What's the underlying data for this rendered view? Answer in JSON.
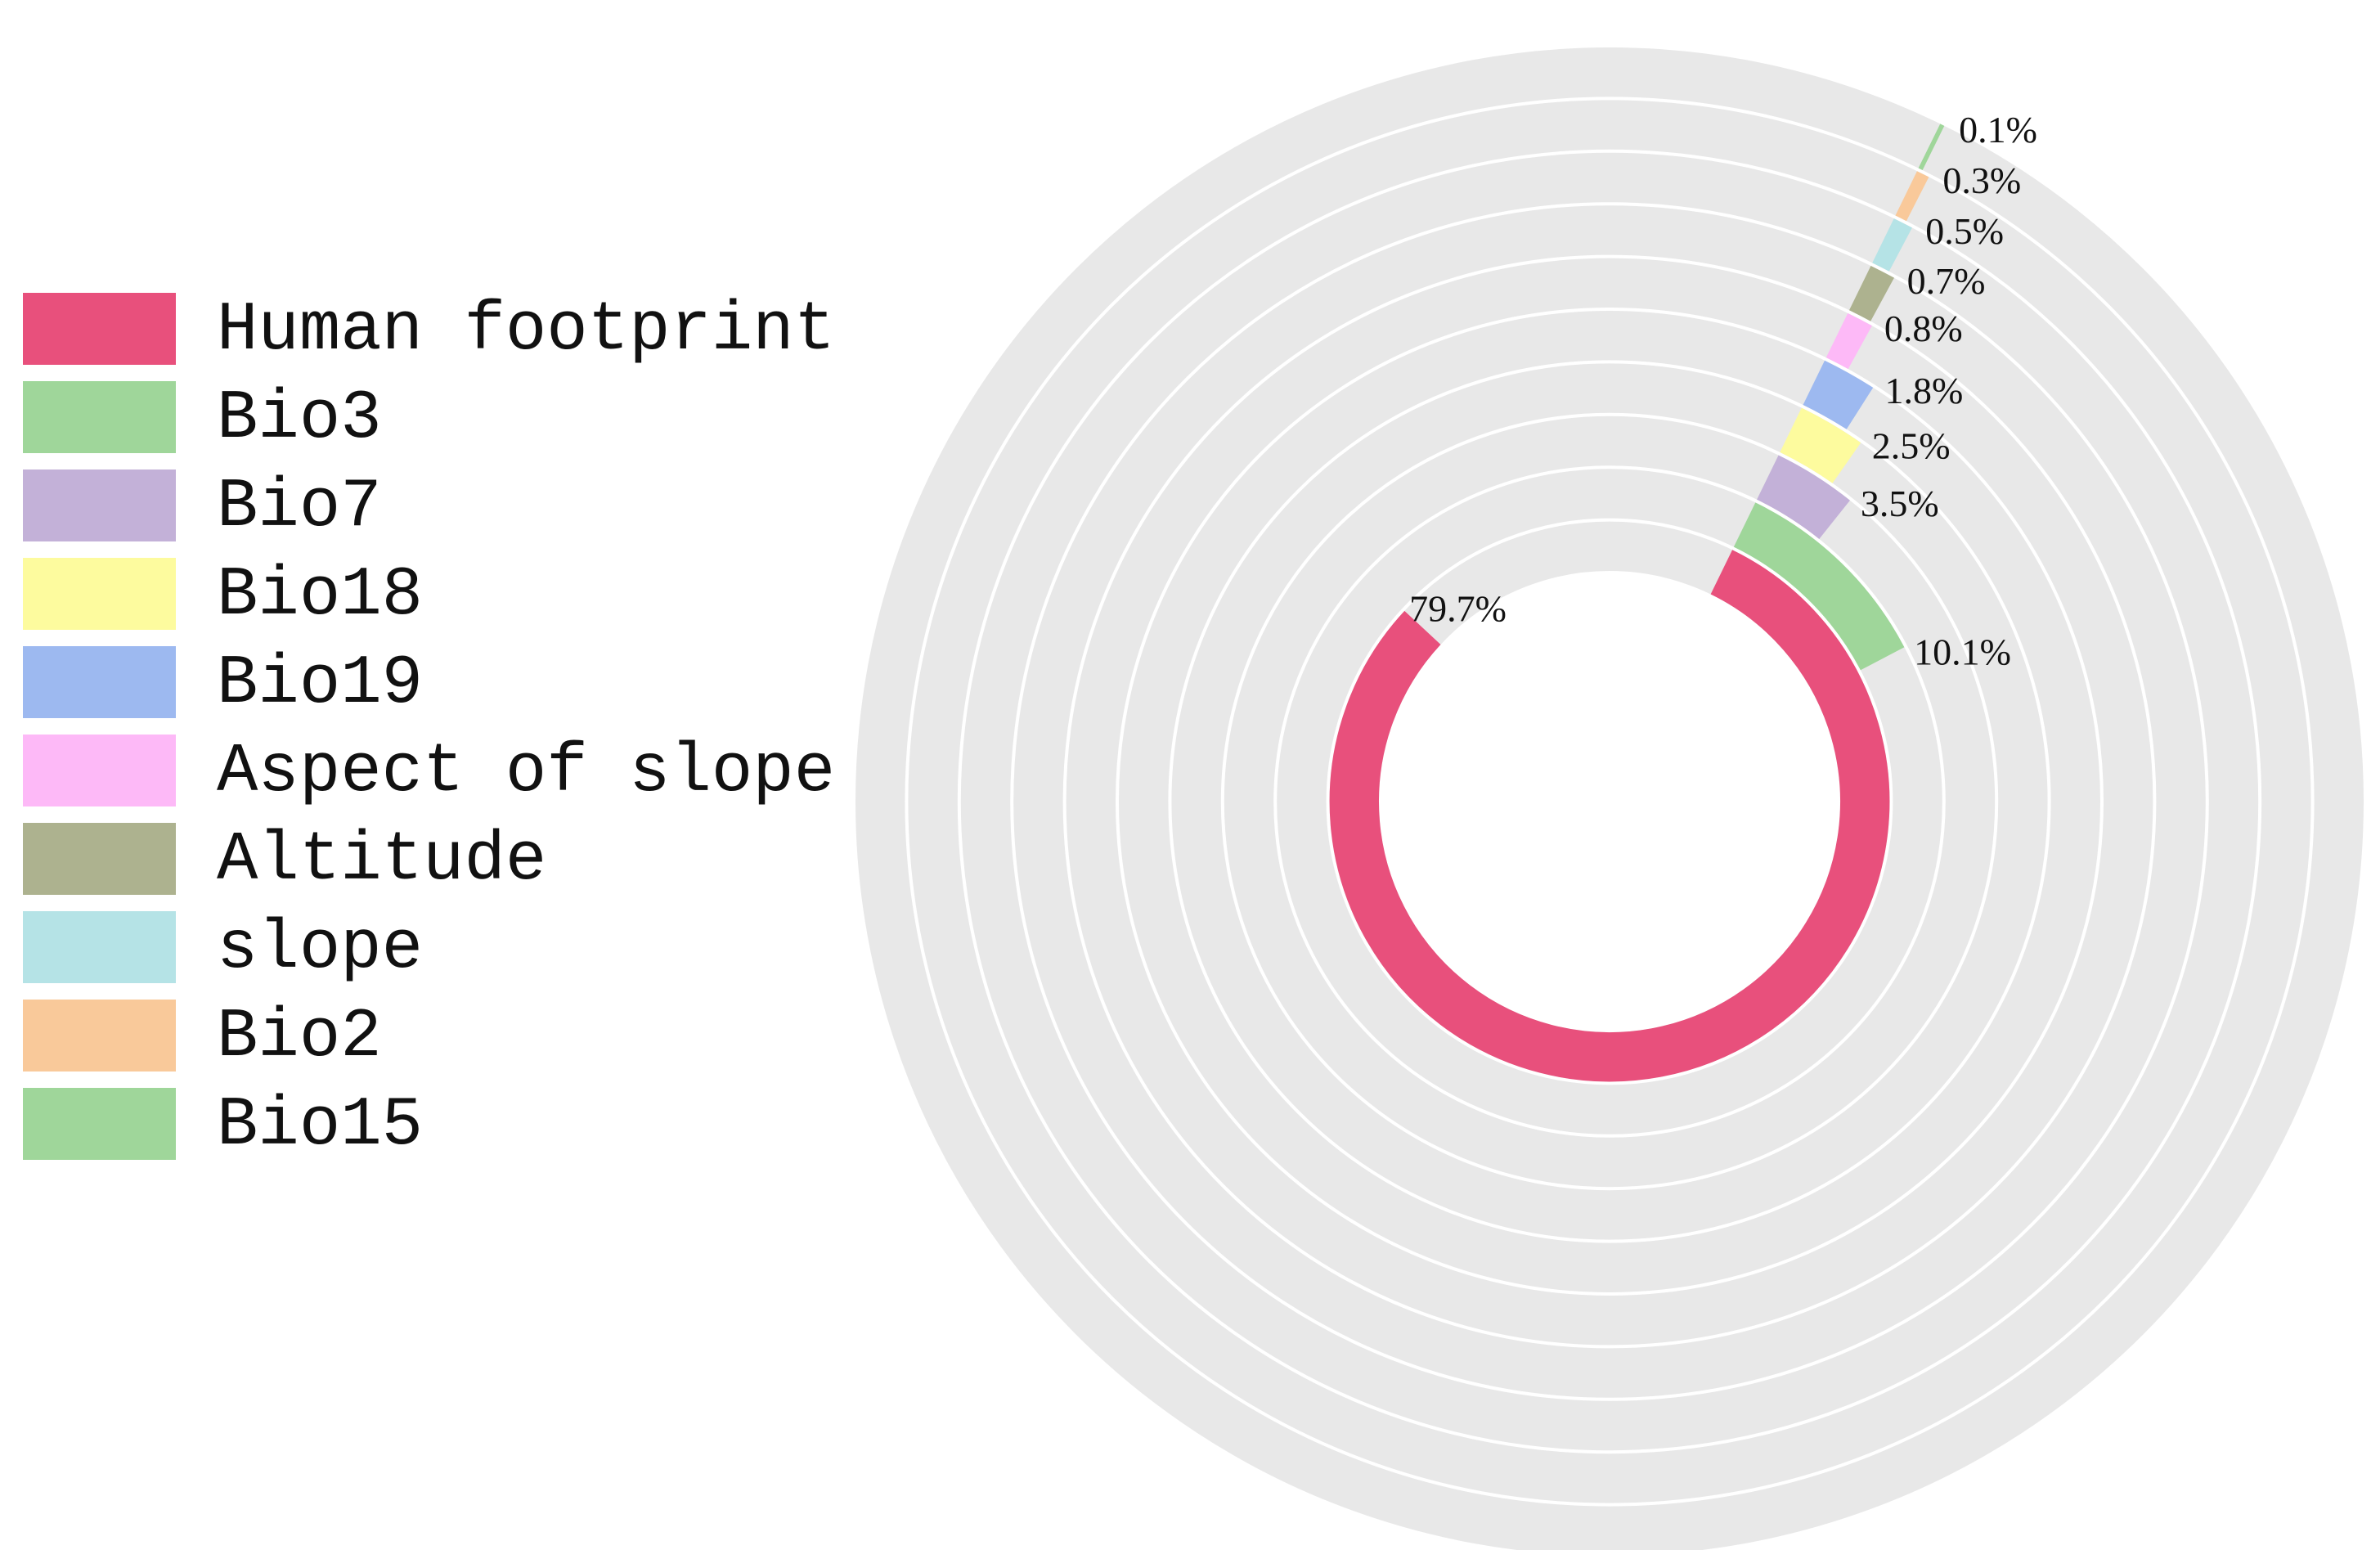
{
  "chart_data": {
    "type": "radial_bar",
    "rlim": [
      0,
      100
    ],
    "series": [
      {
        "name": "Human footprint",
        "color": "#e8507c",
        "values": [
          79.7
        ],
        "value_labels": [
          "79.7%"
        ]
      },
      {
        "name": "Bio3",
        "color": "#9fd69a",
        "values": [
          10.1
        ],
        "value_labels": [
          "10.1%"
        ]
      },
      {
        "name": "Bio7",
        "color": "#c3b1d8",
        "values": [
          3.5
        ],
        "value_labels": [
          "3.5%"
        ]
      },
      {
        "name": "Bio18",
        "color": "#fdfb9e",
        "values": [
          2.5
        ],
        "value_labels": [
          "2.5%"
        ]
      },
      {
        "name": "Bio19",
        "color": "#9db9f0",
        "values": [
          1.8
        ],
        "value_labels": [
          "1.8%"
        ]
      },
      {
        "name": "Aspect of slope",
        "color": "#fdb9f7",
        "values": [
          0.8
        ],
        "value_labels": [
          "0.8%"
        ]
      },
      {
        "name": "Altitude",
        "color": "#adb28f",
        "values": [
          0.7
        ],
        "value_labels": [
          "0.7%"
        ]
      },
      {
        "name": "slope",
        "color": "#b5e3e6",
        "values": [
          0.5
        ],
        "value_labels": [
          "0.5%"
        ]
      },
      {
        "name": "Bio2",
        "color": "#f9c99a",
        "values": [
          0.3
        ],
        "value_labels": [
          "0.3%"
        ]
      },
      {
        "name": "Bio15",
        "color": "#9fd69a",
        "values": [
          0.1
        ],
        "value_labels": [
          "0.1%"
        ]
      }
    ]
  }
}
